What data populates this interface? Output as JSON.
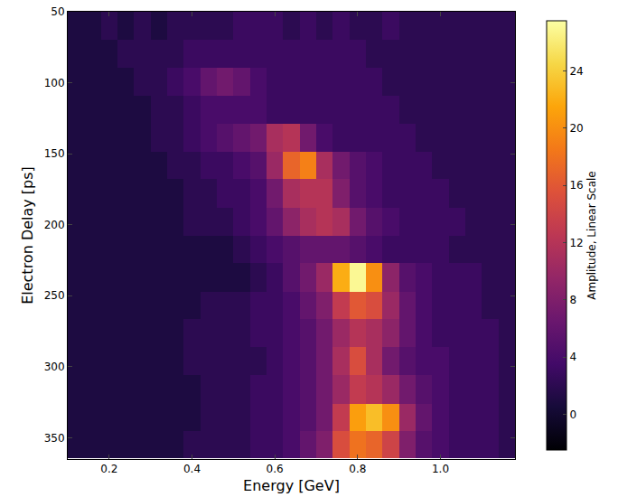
{
  "chart_data": {
    "type": "heatmap",
    "x_label": "Energy [GeV]",
    "y_label": "Electron Delay [ps]",
    "colorbar_label": "Amplitude, Linear Scale",
    "x": [
      0.12,
      0.16,
      0.2,
      0.24,
      0.28,
      0.32,
      0.36,
      0.4,
      0.44,
      0.48,
      0.52,
      0.56,
      0.6,
      0.64,
      0.68,
      0.72,
      0.76,
      0.8,
      0.84,
      0.88,
      0.92,
      0.96,
      1.0,
      1.04,
      1.08,
      1.12,
      1.16
    ],
    "y": [
      60,
      80,
      99,
      119,
      139,
      158,
      178,
      198,
      217,
      237,
      257,
      276,
      296,
      316,
      336,
      355
    ],
    "z": [
      [
        1,
        1,
        2,
        1,
        2,
        1,
        2,
        2,
        2,
        2,
        3,
        3,
        3,
        2,
        3,
        2,
        3,
        2,
        2,
        3,
        2,
        2,
        2,
        2,
        2,
        2,
        2
      ],
      [
        1,
        1,
        1,
        2,
        2,
        2,
        2,
        3,
        3,
        3,
        3,
        3,
        3,
        3,
        3,
        3,
        3,
        3,
        2,
        2,
        2,
        2,
        2,
        2,
        2,
        2,
        2
      ],
      [
        1,
        1,
        1,
        1,
        2,
        2,
        3,
        4,
        6,
        7,
        6,
        4,
        3,
        3,
        3,
        3,
        3,
        3,
        3,
        2,
        2,
        2,
        2,
        2,
        2,
        2,
        2
      ],
      [
        1,
        1,
        1,
        1,
        1,
        2,
        2,
        3,
        4,
        4,
        4,
        4,
        3,
        3,
        3,
        3,
        3,
        3,
        3,
        3,
        2,
        2,
        2,
        2,
        2,
        2,
        2
      ],
      [
        1,
        1,
        1,
        1,
        1,
        2,
        2,
        3,
        4,
        5,
        6,
        7,
        11,
        12,
        7,
        4,
        3,
        3,
        3,
        3,
        3,
        2,
        2,
        2,
        2,
        2,
        2
      ],
      [
        1,
        1,
        1,
        1,
        1,
        1,
        2,
        2,
        3,
        3,
        4,
        5,
        10,
        17,
        19,
        11,
        7,
        5,
        4,
        3,
        3,
        3,
        2,
        2,
        2,
        2,
        2
      ],
      [
        1,
        1,
        1,
        1,
        1,
        1,
        1,
        2,
        2,
        3,
        3,
        4,
        7,
        11,
        12,
        12,
        8,
        5,
        4,
        3,
        3,
        3,
        3,
        2,
        2,
        2,
        2
      ],
      [
        1,
        1,
        1,
        1,
        1,
        1,
        1,
        2,
        2,
        2,
        3,
        4,
        6,
        9,
        11,
        12,
        11,
        7,
        5,
        4,
        3,
        3,
        3,
        3,
        2,
        2,
        2
      ],
      [
        1,
        1,
        1,
        1,
        1,
        1,
        1,
        1,
        1,
        1,
        2,
        3,
        4,
        5,
        6,
        6,
        6,
        5,
        4,
        3,
        3,
        3,
        3,
        2,
        2,
        2,
        2
      ],
      [
        1,
        1,
        1,
        1,
        1,
        1,
        1,
        1,
        1,
        1,
        1,
        2,
        3,
        5,
        7,
        10,
        22,
        27,
        20,
        9,
        5,
        4,
        3,
        3,
        3,
        2,
        2
      ],
      [
        1,
        1,
        1,
        1,
        1,
        1,
        1,
        1,
        2,
        2,
        2,
        3,
        3,
        4,
        6,
        8,
        13,
        16,
        15,
        10,
        6,
        4,
        3,
        3,
        3,
        2,
        2
      ],
      [
        1,
        1,
        1,
        1,
        1,
        1,
        1,
        2,
        2,
        2,
        2,
        3,
        3,
        4,
        5,
        7,
        10,
        12,
        11,
        9,
        6,
        4,
        3,
        3,
        3,
        3,
        2
      ],
      [
        1,
        1,
        1,
        1,
        1,
        1,
        1,
        2,
        2,
        2,
        2,
        2,
        3,
        4,
        5,
        7,
        11,
        15,
        11,
        7,
        5,
        4,
        4,
        3,
        3,
        3,
        2
      ],
      [
        1,
        1,
        1,
        1,
        1,
        1,
        1,
        1,
        2,
        2,
        2,
        3,
        3,
        4,
        5,
        7,
        10,
        13,
        12,
        10,
        7,
        5,
        4,
        3,
        3,
        3,
        2
      ],
      [
        1,
        1,
        1,
        1,
        1,
        1,
        1,
        1,
        2,
        2,
        2,
        3,
        3,
        4,
        5,
        7,
        13,
        21,
        23,
        20,
        10,
        6,
        4,
        3,
        3,
        3,
        2
      ],
      [
        1,
        1,
        1,
        1,
        1,
        1,
        1,
        2,
        2,
        2,
        2,
        3,
        3,
        4,
        6,
        8,
        15,
        18,
        17,
        14,
        8,
        5,
        4,
        3,
        3,
        3,
        2
      ]
    ],
    "xlim": [
      0.1,
      1.18
    ],
    "xticks": [
      0.2,
      0.4,
      0.6,
      0.8,
      {
        "value": 1,
        "label": "1.0"
      }
    ],
    "ylim": [
      365,
      50
    ],
    "yticks": [
      50,
      100,
      150,
      200,
      250,
      300,
      350
    ],
    "zlim": [
      -2.5,
      27.5
    ],
    "zticks": [
      0,
      4,
      8,
      12,
      16,
      20,
      24
    ]
  }
}
